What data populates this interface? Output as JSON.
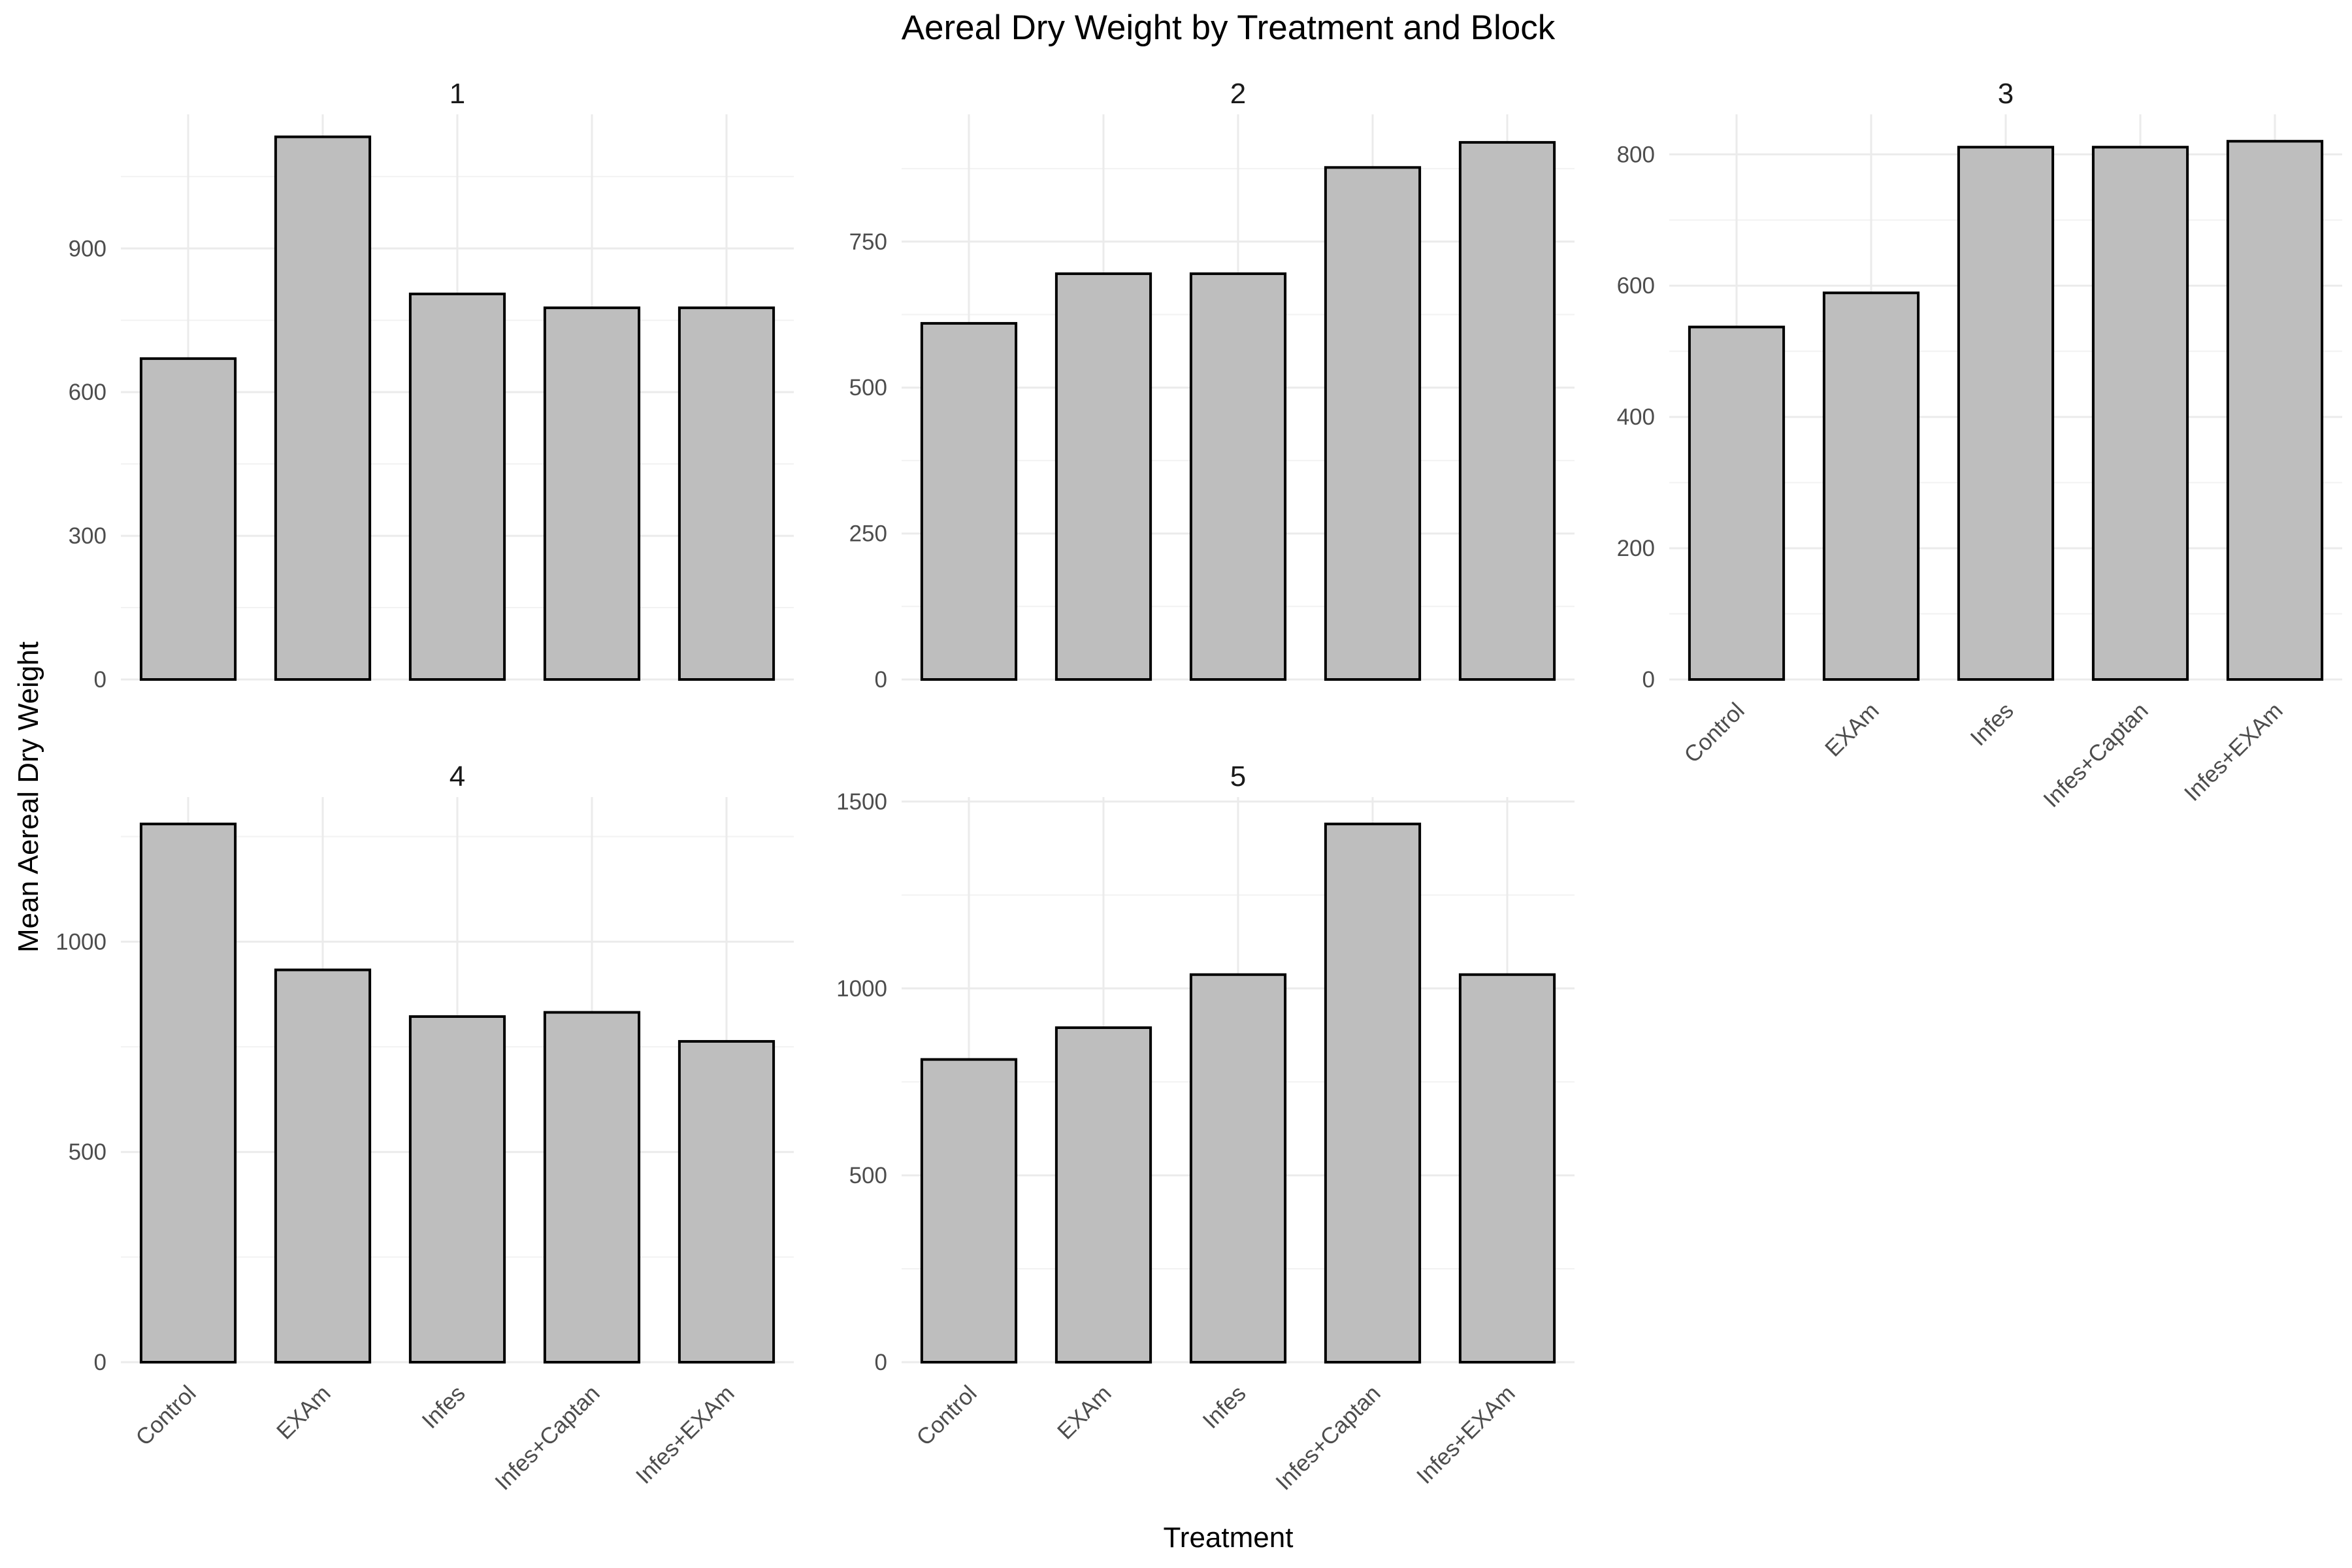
{
  "chart_data": {
    "type": "bar",
    "title": "Aereal Dry Weight by Treatment and Block",
    "xlabel": "Treatment",
    "ylabel": "Mean Aereal Dry Weight",
    "categories": [
      "Control",
      "EXAm",
      "Infes",
      "Infes+Captan",
      "Infes+EXAm"
    ],
    "grid": true,
    "legend": "none",
    "colors": {
      "bar_fill": "#bebebe",
      "bar_stroke": "#000000",
      "grid": "#ebebeb"
    },
    "facets": [
      {
        "label": "1",
        "values": [
          670,
          1133,
          805,
          776,
          776
        ],
        "ylim": [
          0,
          1180
        ],
        "yticks": [
          0,
          300,
          600,
          900
        ]
      },
      {
        "label": "2",
        "values": [
          610,
          695,
          695,
          877,
          920
        ],
        "ylim": [
          0,
          968
        ],
        "yticks": [
          0,
          250,
          500,
          750
        ]
      },
      {
        "label": "3",
        "values": [
          537,
          589,
          811,
          811,
          820
        ],
        "ylim": [
          0,
          861
        ],
        "yticks": [
          0,
          200,
          400,
          600,
          800
        ]
      },
      {
        "label": "4",
        "values": [
          1280,
          933,
          822,
          832,
          763
        ],
        "ylim": [
          0,
          1344
        ],
        "yticks": [
          0,
          500,
          1000
        ]
      },
      {
        "label": "5",
        "values": [
          810,
          895,
          1037,
          1440,
          1037
        ],
        "ylim": [
          0,
          1512
        ],
        "yticks": [
          0,
          500,
          1000,
          1500
        ]
      }
    ]
  }
}
